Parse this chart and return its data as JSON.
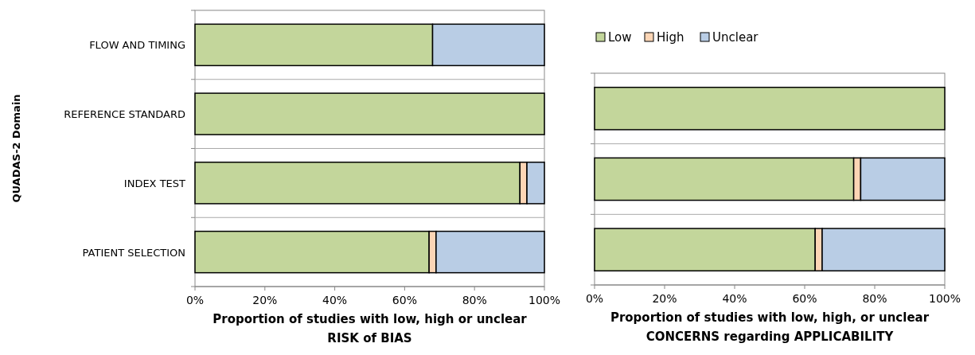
{
  "chart_data": [
    {
      "type": "bar",
      "orientation": "horizontal",
      "stacked": true,
      "ylabel": "QUADAS-2 Domain",
      "xlabel": "Proportion of studies with low, high or unclear\nRISK of BIAS",
      "categories": [
        "FLOW AND TIMING",
        "REFERENCE STANDARD",
        "INDEX TEST",
        "PATIENT SELECTION"
      ],
      "series": [
        {
          "color": "#c3d69b",
          "values": [
            68,
            100,
            93,
            67
          ]
        },
        {
          "color": "#fcd5b5",
          "values": [
            0,
            0,
            2,
            2
          ]
        },
        {
          "color": "#b9cde5",
          "values": [
            32,
            0,
            5,
            31
          ]
        }
      ],
      "xlim": [
        0,
        100
      ],
      "xticks": [
        {
          "value": 0,
          "label": "0%"
        },
        {
          "value": 20,
          "label": "20%"
        },
        {
          "value": 40,
          "label": "40%"
        },
        {
          "value": 60,
          "label": "60%"
        },
        {
          "value": 80,
          "label": "80%"
        },
        {
          "value": 100,
          "label": "100%"
        }
      ],
      "grid": "y",
      "legend": false
    },
    {
      "type": "bar",
      "orientation": "horizontal",
      "stacked": true,
      "xlabel": "Proportion of studies with low, high, or unclear\nCONCERNS regarding APPLICABILITY",
      "categories": [
        null,
        null,
        null
      ],
      "series": [
        {
          "name": "Low",
          "color": "#c3d69b",
          "values": [
            100,
            74,
            63
          ]
        },
        {
          "name": "High",
          "color": "#fcd5b5",
          "values": [
            0,
            2,
            2
          ]
        },
        {
          "name": "Unclear",
          "color": "#b9cde5",
          "values": [
            0,
            24,
            35
          ]
        }
      ],
      "xlim": [
        0,
        100
      ],
      "xticks": [
        {
          "value": 0,
          "label": "0%"
        },
        {
          "value": 20,
          "label": "20%"
        },
        {
          "value": 40,
          "label": "40%"
        },
        {
          "value": 60,
          "label": "60%"
        },
        {
          "value": 80,
          "label": "80%"
        },
        {
          "value": 100,
          "label": "100%"
        }
      ],
      "grid": "y",
      "legend": "top",
      "tick_labels": "x"
    }
  ]
}
